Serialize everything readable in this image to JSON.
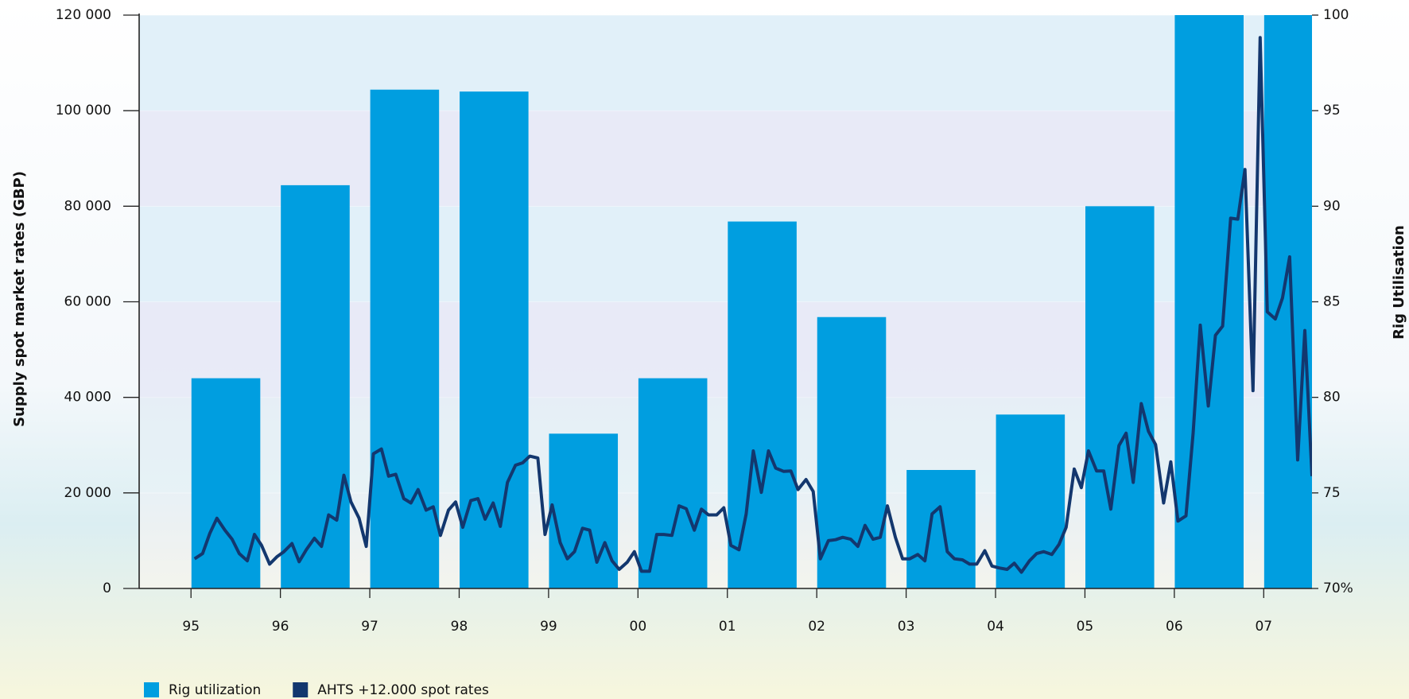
{
  "chart_data": {
    "type": "combo",
    "ylabel": "Supply spot market rates (GBP)",
    "y2label": "Rig Utilisation",
    "xlim": [
      94.42,
      107.54
    ],
    "xticks": [
      95,
      96,
      97,
      98,
      99,
      {
        "value": 100,
        "label": "00"
      },
      {
        "value": 101,
        "label": "01"
      },
      {
        "value": 102,
        "label": "02"
      },
      {
        "value": 103,
        "label": "03"
      },
      {
        "value": 104,
        "label": "04"
      },
      {
        "value": 105,
        "label": "05"
      },
      {
        "value": 106,
        "label": "06"
      },
      {
        "value": 107,
        "label": "07"
      }
    ],
    "ylim": [
      0,
      120000
    ],
    "yticks": [
      0,
      {
        "value": 20000,
        "label": "20 000"
      },
      {
        "value": 40000,
        "label": "40 000"
      },
      {
        "value": 60000,
        "label": "60 000"
      },
      {
        "value": 80000,
        "label": "80 000"
      },
      {
        "value": 100000,
        "label": "100 000"
      },
      {
        "value": 120000,
        "label": "120 000"
      }
    ],
    "y2lim": [
      70,
      100
    ],
    "y2ticks": [
      {
        "value": 70,
        "label": "70%"
      },
      75,
      80,
      85,
      90,
      95,
      100
    ],
    "grid": true,
    "legend": "bottom-left",
    "series": [
      {
        "name": "Rig utilization",
        "type": "bar",
        "color": "#009ee0",
        "axis": "y2",
        "x": [
          95.39,
          96.39,
          97.39,
          98.39,
          99.39,
          100.39,
          101.39,
          102.39,
          103.39,
          104.39,
          105.39,
          106.39,
          107.39
        ],
        "values": [
          81.0,
          91.1,
          96.1,
          96.0,
          78.1,
          81.0,
          89.2,
          84.2,
          76.2,
          79.1,
          90.0,
          100,
          100
        ]
      },
      {
        "name": "AHTS +12.000 spot rates",
        "type": "line",
        "color": "#13376e",
        "x": [
          95.04,
          95.13,
          95.21,
          95.29,
          95.38,
          95.46,
          95.54,
          95.63,
          95.71,
          95.79,
          95.88,
          95.96,
          96.04,
          96.13,
          96.21,
          96.29,
          96.38,
          96.46,
          96.54,
          96.63,
          96.71,
          96.79,
          96.88,
          96.96,
          97.04,
          97.13,
          97.21,
          97.29,
          97.38,
          97.46,
          97.54,
          97.63,
          97.71,
          97.79,
          97.88,
          97.96,
          98.04,
          98.13,
          98.21,
          98.29,
          98.38,
          98.46,
          98.54,
          98.63,
          98.71,
          98.79,
          98.88,
          98.96,
          99.04,
          99.13,
          99.21,
          99.29,
          99.38,
          99.46,
          99.54,
          99.63,
          99.71,
          99.79,
          99.88,
          99.96,
          100.04,
          100.13,
          100.21,
          100.29,
          100.38,
          100.46,
          100.54,
          100.63,
          100.71,
          100.79,
          100.88,
          100.96,
          101.04,
          101.13,
          101.21,
          101.29,
          101.38,
          101.46,
          101.54,
          101.63,
          101.71,
          101.79,
          101.88,
          101.96,
          102.04,
          102.13,
          102.21,
          102.29,
          102.38,
          102.46,
          102.54,
          102.63,
          102.71,
          102.79,
          102.88,
          102.96,
          103.04,
          103.13,
          103.21,
          103.29,
          103.38,
          103.46,
          103.54,
          103.63,
          103.71,
          103.79,
          103.88,
          103.96,
          104.04,
          104.13,
          104.21,
          104.29,
          104.38,
          104.46,
          104.54,
          104.63,
          104.71,
          104.79,
          104.88,
          104.96,
          105.04,
          105.13,
          105.21,
          105.29,
          105.38,
          105.46,
          105.54,
          105.63,
          105.71,
          105.79,
          105.88,
          105.96,
          106.04,
          106.13,
          106.21,
          106.29,
          106.38,
          106.46,
          106.54,
          106.63,
          106.71,
          106.79,
          106.88,
          106.96,
          107.04,
          107.13,
          107.21,
          107.29,
          107.38,
          107.46,
          107.54
        ],
        "values": [
          6200,
          7300,
          11500,
          14700,
          12200,
          10300,
          7300,
          5800,
          11300,
          9000,
          5100,
          6600,
          7700,
          9400,
          5600,
          8100,
          10500,
          8800,
          15400,
          14300,
          23700,
          18100,
          14700,
          8800,
          28200,
          29200,
          23500,
          23900,
          18800,
          17900,
          20700,
          16400,
          17100,
          11100,
          16400,
          18100,
          12800,
          18400,
          18800,
          14500,
          17900,
          13000,
          22200,
          25800,
          26300,
          27700,
          27300,
          11300,
          17500,
          9600,
          6200,
          7700,
          12600,
          12200,
          5500,
          9600,
          5800,
          4000,
          5500,
          7700,
          3600,
          3600,
          11300,
          11300,
          11100,
          17300,
          16700,
          12200,
          16600,
          15400,
          15400,
          16900,
          9000,
          8100,
          15600,
          28800,
          20100,
          28800,
          25200,
          24500,
          24600,
          20700,
          22800,
          20300,
          6200,
          10000,
          10200,
          10700,
          10300,
          8800,
          13200,
          10300,
          10700,
          17300,
          10700,
          6200,
          6200,
          7100,
          5800,
          15600,
          17100,
          7700,
          6200,
          6000,
          5100,
          5100,
          7900,
          4700,
          4300,
          4000,
          5300,
          3400,
          5800,
          7300,
          7700,
          7100,
          9200,
          12800,
          25000,
          21100,
          28800,
          24600,
          24600,
          16600,
          29900,
          32500,
          22200,
          38700,
          32900,
          30100,
          17900,
          26500,
          14100,
          15200,
          32500,
          55100,
          38200,
          53000,
          54900,
          77500,
          77300,
          87700,
          41400,
          115300,
          57900,
          56400,
          60800,
          69400,
          26900,
          54000,
          23500
        ]
      }
    ]
  }
}
